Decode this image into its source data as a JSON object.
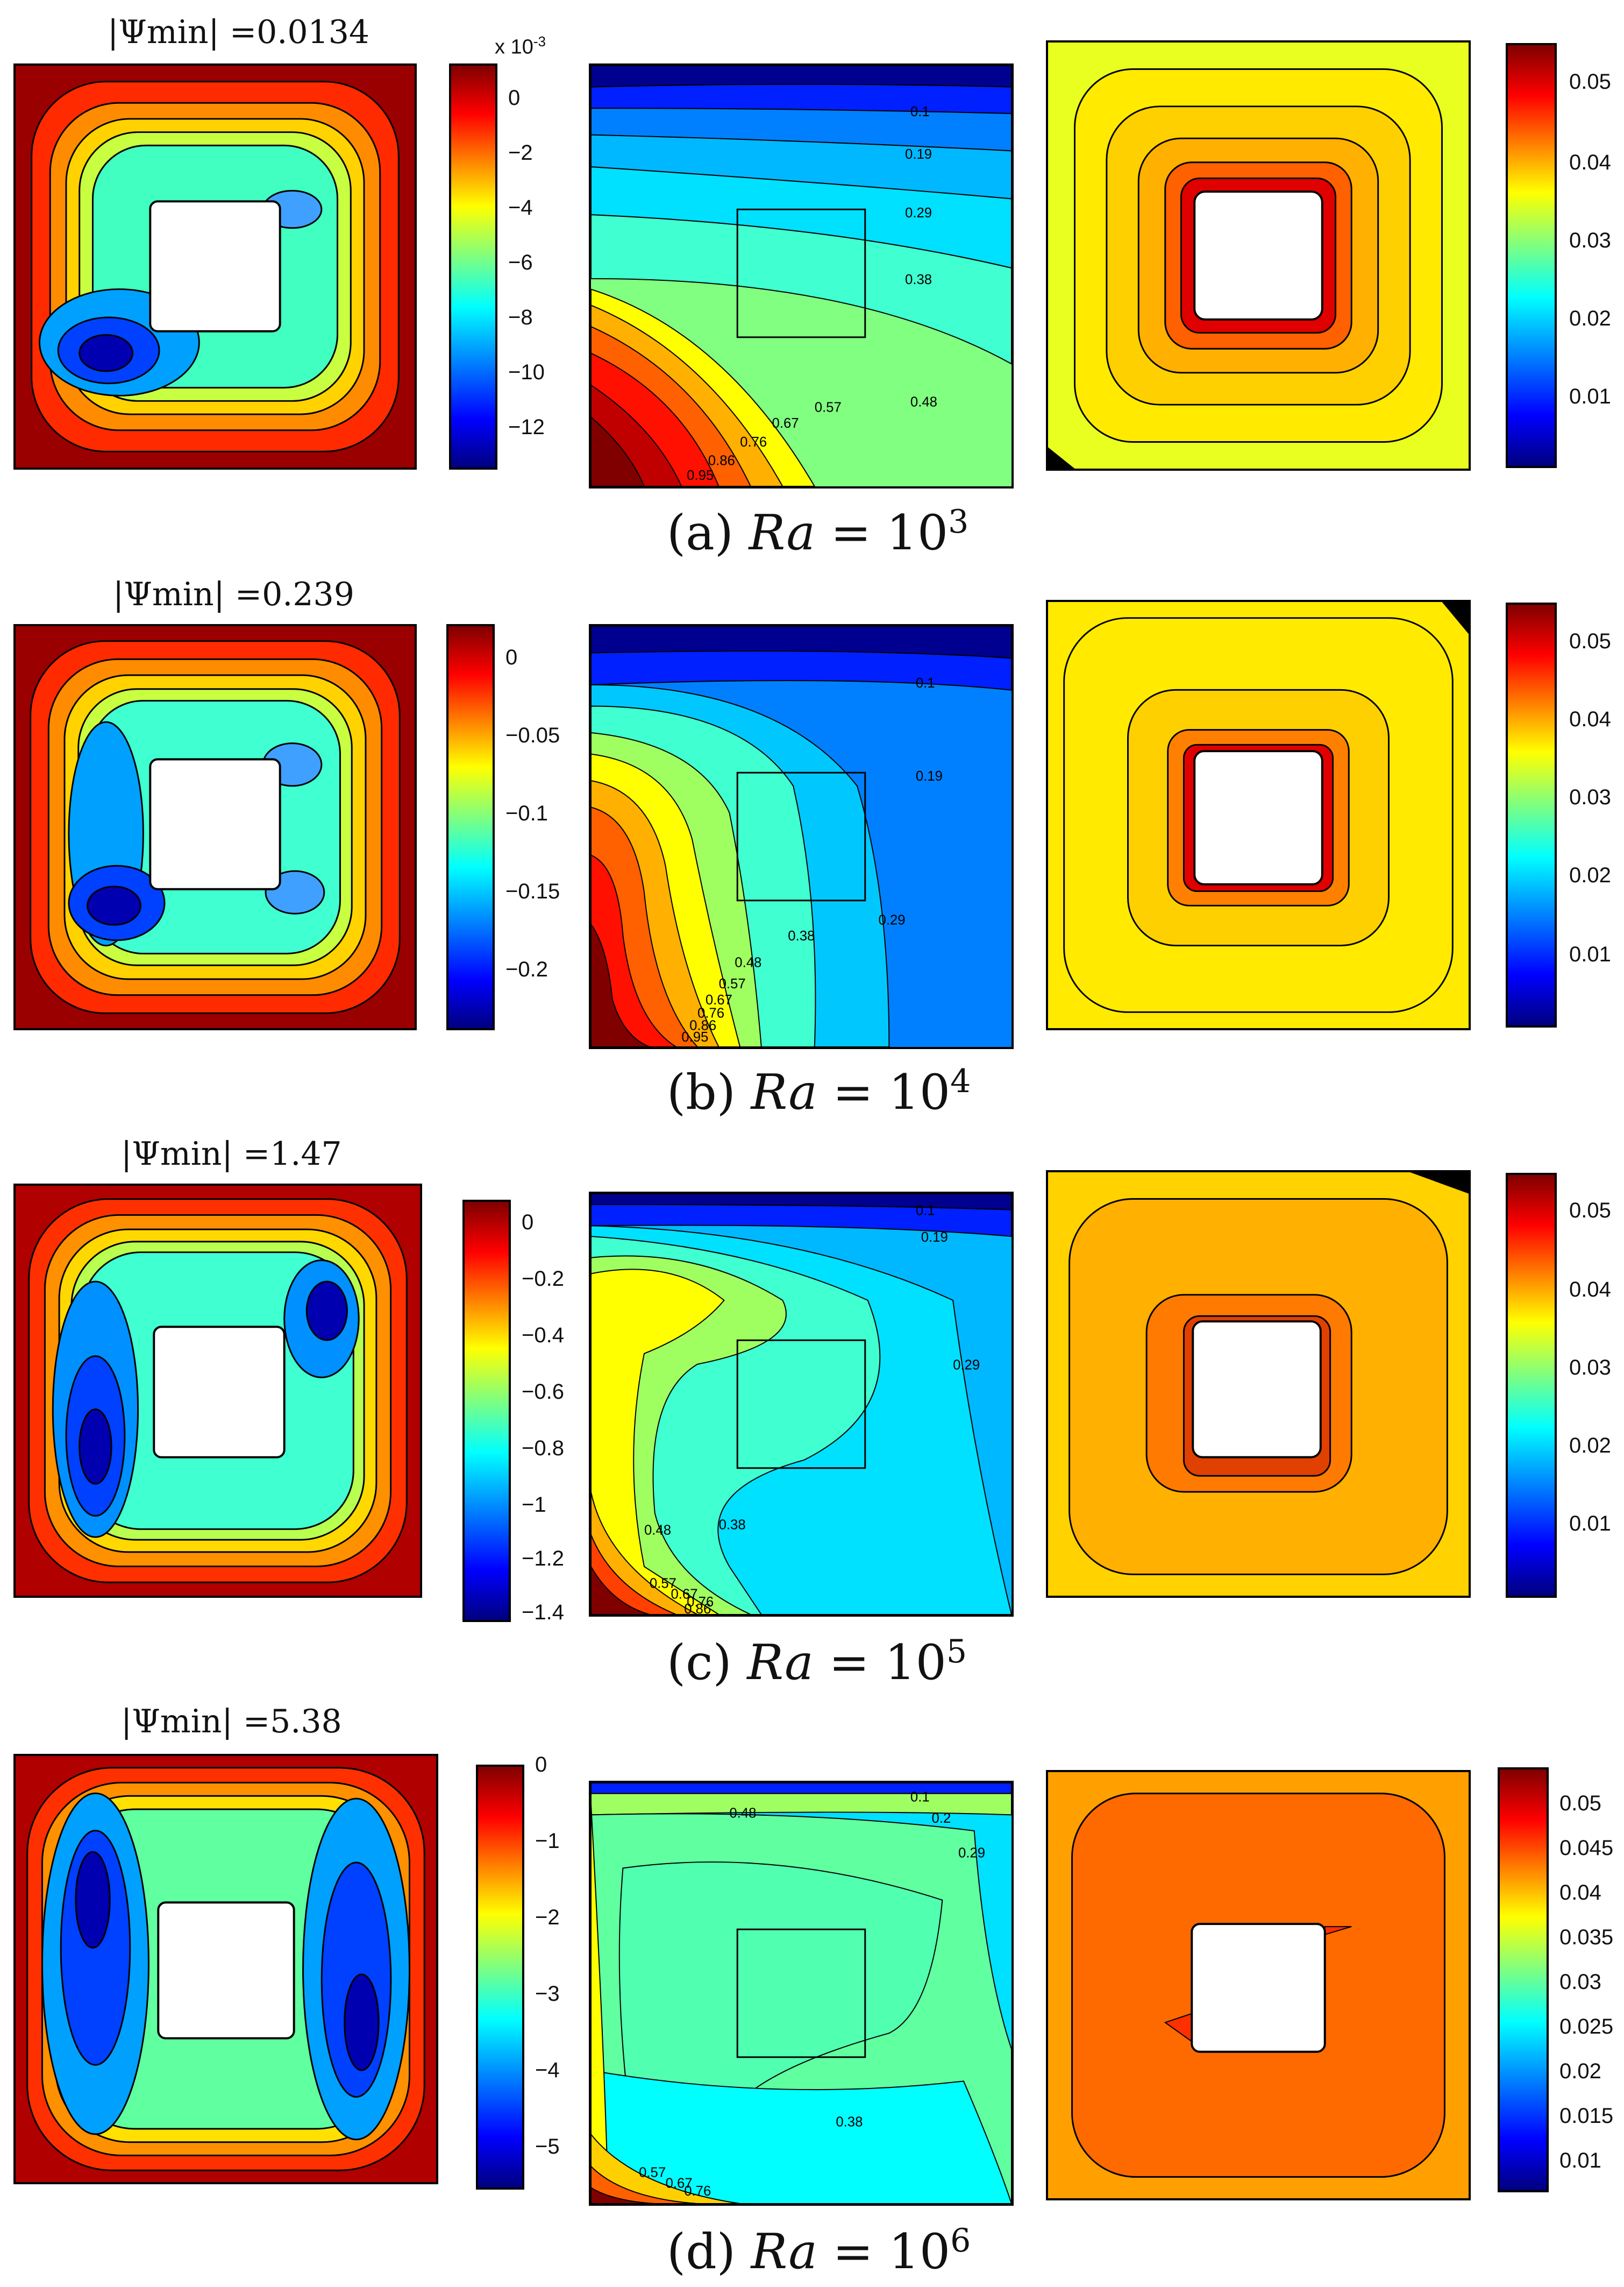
{
  "rows": [
    {
      "psi_label": "|Ψmin| =0.0134",
      "psi_ticks": [
        "0",
        "−2",
        "−4",
        "−6",
        "−8",
        "−10",
        "−12"
      ],
      "psi_exponent": "x 10",
      "psi_exponent_power": "-3",
      "contour_labels": [
        "0.1",
        "0.19",
        "0.29",
        "0.38",
        "0.48",
        "0.57",
        "0.67",
        "0.76",
        "0.86",
        "0.95"
      ],
      "temp_ticks": [
        "0.05",
        "0.04",
        "0.03",
        "0.02",
        "0.01"
      ],
      "caption_prefix": "(a)",
      "caption_ra": "Ra",
      "caption_eq": " = 10",
      "caption_power": "3"
    },
    {
      "psi_label": "|Ψmin| =0.239",
      "psi_ticks": [
        "0",
        "−0.05",
        "−0.1",
        "−0.15",
        "−0.2"
      ],
      "contour_labels": [
        "0.1",
        "0.19",
        "0.29",
        "0.38",
        "0.48",
        "0.57",
        "0.67",
        "0.76",
        "0.86",
        "0.95"
      ],
      "temp_ticks": [
        "0.05",
        "0.04",
        "0.03",
        "0.02",
        "0.01"
      ],
      "caption_prefix": "(b)",
      "caption_ra": "Ra",
      "caption_eq": " = 10",
      "caption_power": "4"
    },
    {
      "psi_label": "|Ψmin| =1.47",
      "psi_ticks": [
        "0",
        "−0.2",
        "−0.4",
        "−0.6",
        "−0.8",
        "−1",
        "−1.2",
        "−1.4"
      ],
      "contour_labels": [
        "0.1",
        "0.19",
        "0.29",
        "0.38",
        "0.48",
        "0.57",
        "0.67",
        "0.76",
        "0.86"
      ],
      "temp_ticks": [
        "0.05",
        "0.04",
        "0.03",
        "0.02",
        "0.01"
      ],
      "caption_prefix": "(c)",
      "caption_ra": "Ra",
      "caption_eq": " = 10",
      "caption_power": "5"
    },
    {
      "psi_label": "|Ψmin| =5.38",
      "psi_ticks": [
        "0",
        "−1",
        "−2",
        "−3",
        "−4",
        "−5"
      ],
      "contour_labels": [
        "0.1",
        "0.2",
        "0.29",
        "0.38",
        "0.48",
        "0.57",
        "0.67",
        "0.76"
      ],
      "temp_ticks": [
        "0.05",
        "0.045",
        "0.04",
        "0.035",
        "0.03",
        "0.025",
        "0.02",
        "0.015",
        "0.01"
      ],
      "caption_prefix": "(d)",
      "caption_ra": "Ra",
      "caption_eq": " = 10",
      "caption_power": "6"
    }
  ],
  "colors": {
    "jet_top": "#800000",
    "jet_red": "#ff0000",
    "jet_yellow": "#ffff00",
    "jet_cyan": "#00ffff",
    "jet_blue": "#0000ff",
    "jet_bottom": "#000080"
  }
}
